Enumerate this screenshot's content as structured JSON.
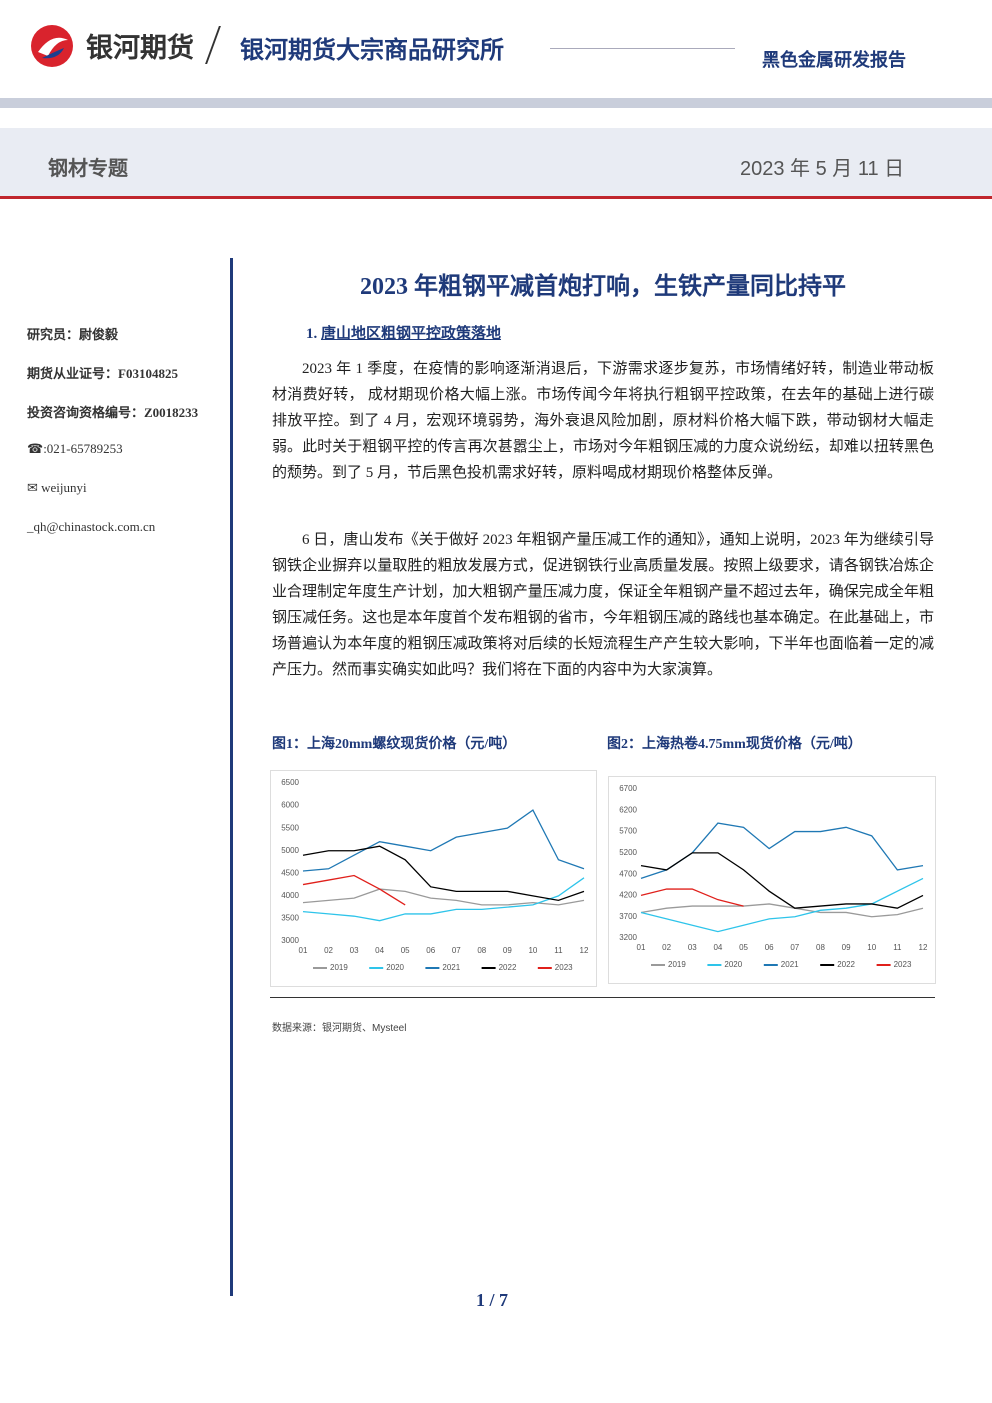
{
  "header": {
    "brand": "银河期货",
    "institute": "银河期货大宗商品研究所",
    "report_type": "黑色金属研发报告",
    "topic": "钢材专题",
    "date": "2023 年 5 月 11 日"
  },
  "sidebar": {
    "analyst": "研究员：尉俊毅",
    "license": "期货从业证号：F03104825",
    "consult": "投资咨询资格编号：Z0018233",
    "phone": "☎:021-65789253",
    "email_user": "✉ weijunyi",
    "email_domain": "_qh@chinastock.com.cn"
  },
  "article": {
    "title": "2023 年粗钢平减首炮打响，生铁产量同比持平",
    "section_number": "1.",
    "section_title": "唐山地区粗钢平控政策落地",
    "paragraphs": [
      "2023 年 1 季度，在疫情的影响逐渐消退后，下游需求逐步复苏，市场情绪好转，制造业带动板材消费好转， 成材期现价格大幅上涨。市场传闻今年将执行粗钢平控政策，在去年的基础上进行碳排放平控。到了 4 月，宏观环境弱势，海外衰退风险加剧，原材料价格大幅下跌，带动钢材大幅走弱。此时关于粗钢平控的传言再次甚嚣尘上，市场对今年粗钢压减的力度众说纷纭，却难以扭转黑色的颓势。到了 5 月，节后黑色投机需求好转，原料喝成材期现价格整体反弹。",
      "6 日，唐山发布《关于做好 2023 年粗钢产量压减工作的通知》，通知上说明，2023 年为继续引导钢铁企业摒弃以量取胜的粗放发展方式，促进钢铁行业高质量发展。按照上级要求，请各钢铁冶炼企业合理制定年度生产计划，加大粗钢产量压减力度，保证全年粗钢产量不超过去年，确保完成全年粗钢压减任务。这也是本年度首个发布粗钢的省市，今年粗钢压减的路线也基本确定。在此基础上，市场普遍认为本年度的粗钢压减政策将对后续的长短流程生产产生较大影响，下半年也面临着一定的减产压力。然而事实确实如此吗？我们将在下面的内容中为大家演算。"
    ],
    "source": "数据来源：银河期货、Mysteel",
    "page": "1 / 7"
  },
  "chart_data": [
    {
      "type": "line",
      "title": "图1：上海20mm螺纹现货价格（元/吨）",
      "categories": [
        "01",
        "02",
        "03",
        "04",
        "05",
        "06",
        "07",
        "08",
        "09",
        "10",
        "11",
        "12"
      ],
      "ylim": [
        3000,
        6500
      ],
      "yticks": [
        3000,
        3500,
        4000,
        4500,
        5000,
        5500,
        6000,
        6500
      ],
      "series": [
        {
          "name": "2019",
          "color": "#9a9a9a",
          "values": [
            3850,
            3900,
            3950,
            4150,
            4100,
            3950,
            3900,
            3800,
            3800,
            3850,
            3800,
            3900
          ]
        },
        {
          "name": "2020",
          "color": "#2ec4ea",
          "values": [
            3650,
            3600,
            3550,
            3450,
            3600,
            3600,
            3700,
            3700,
            3750,
            3800,
            4000,
            4400
          ]
        },
        {
          "name": "2021",
          "color": "#1f78b4",
          "values": [
            4550,
            4600,
            4900,
            5200,
            5100,
            5000,
            5300,
            5400,
            5500,
            5900,
            4800,
            4600
          ]
        },
        {
          "name": "2022",
          "color": "#000000",
          "values": [
            4900,
            5000,
            5000,
            5100,
            4800,
            4200,
            4100,
            4100,
            4100,
            4000,
            3900,
            4100
          ]
        },
        {
          "name": "2023",
          "color": "#e0201b",
          "values": [
            4250,
            4350,
            4450,
            4150,
            3800,
            null,
            null,
            null,
            null,
            null,
            null,
            null
          ]
        }
      ]
    },
    {
      "type": "line",
      "title": "图2：上海热卷4.75mm现货价格（元/吨）",
      "categories": [
        "01",
        "02",
        "03",
        "04",
        "05",
        "06",
        "07",
        "08",
        "09",
        "10",
        "11",
        "12"
      ],
      "ylim": [
        3200,
        6700
      ],
      "yticks": [
        3200,
        3700,
        4200,
        4700,
        5200,
        5700,
        6200,
        6700
      ],
      "series": [
        {
          "name": "2019",
          "color": "#9a9a9a",
          "values": [
            3800,
            3900,
            3950,
            3950,
            3950,
            4000,
            3900,
            3800,
            3800,
            3700,
            3750,
            3900
          ]
        },
        {
          "name": "2020",
          "color": "#2ec4ea",
          "values": [
            3800,
            3650,
            3500,
            3350,
            3500,
            3650,
            3700,
            3850,
            3900,
            4000,
            4300,
            4600
          ]
        },
        {
          "name": "2021",
          "color": "#1f78b4",
          "values": [
            4600,
            4800,
            5200,
            5900,
            5800,
            5300,
            5700,
            5700,
            5800,
            5600,
            4800,
            4900
          ]
        },
        {
          "name": "2022",
          "color": "#000000",
          "values": [
            4900,
            4800,
            5200,
            5200,
            4800,
            4300,
            3900,
            3950,
            4000,
            4000,
            3900,
            4200
          ]
        },
        {
          "name": "2023",
          "color": "#e0201b",
          "values": [
            4200,
            4350,
            4350,
            4100,
            3950,
            null,
            null,
            null,
            null,
            null,
            null,
            null
          ]
        }
      ]
    }
  ]
}
